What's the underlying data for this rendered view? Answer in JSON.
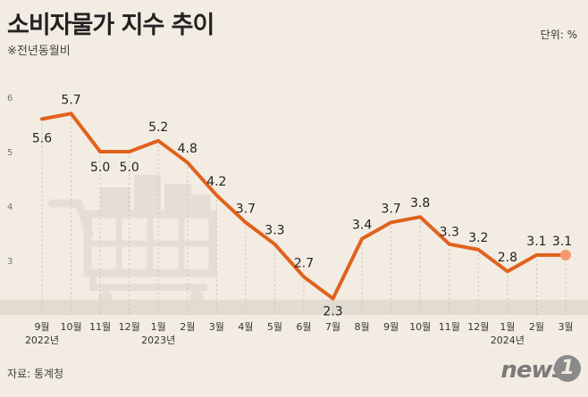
{
  "header": {
    "title": "소비자물가 지수 추이",
    "subtitle": "※전년동월비",
    "unit": "단위: %"
  },
  "footer": {
    "source": "자료: 통계청",
    "logo_text": "news",
    "logo_mark": "1"
  },
  "colors": {
    "line": "#e0621d",
    "band": "#e2dbd0",
    "grid": "#c9c2b8",
    "text": "#222222",
    "last_point": "#f29a6e"
  },
  "chart_data": {
    "type": "line",
    "title": "소비자물가 지수 추이",
    "subtitle": "※전년동월비",
    "categories": [
      "9월",
      "10월",
      "11월",
      "12월",
      "1월",
      "2월",
      "3월",
      "4월",
      "5월",
      "6월",
      "7월",
      "8월",
      "9월",
      "10월",
      "11월",
      "12월",
      "1월",
      "2월",
      "3월"
    ],
    "year_labels": [
      "2022년",
      "2023년",
      "2024년"
    ],
    "year_label_indices": [
      0,
      4,
      16
    ],
    "values": [
      5.6,
      5.7,
      5.0,
      5.0,
      5.2,
      4.8,
      4.2,
      3.7,
      3.3,
      2.7,
      2.3,
      3.4,
      3.7,
      3.8,
      3.3,
      3.2,
      2.8,
      3.1,
      3.1
    ],
    "value_labels": [
      "5.6",
      "5.7",
      "5.0",
      "5.0",
      "5.2",
      "4.8",
      "4.2",
      "3.7",
      "3.3",
      "2.7",
      "2.3",
      "3.4",
      "3.7",
      "3.8",
      "3.3",
      "3.2",
      "2.8",
      "3.1",
      "3.1"
    ],
    "y_ticks": [
      "3",
      "4",
      "5",
      "6"
    ],
    "ylim": [
      2,
      6.5
    ],
    "grid": false
  }
}
